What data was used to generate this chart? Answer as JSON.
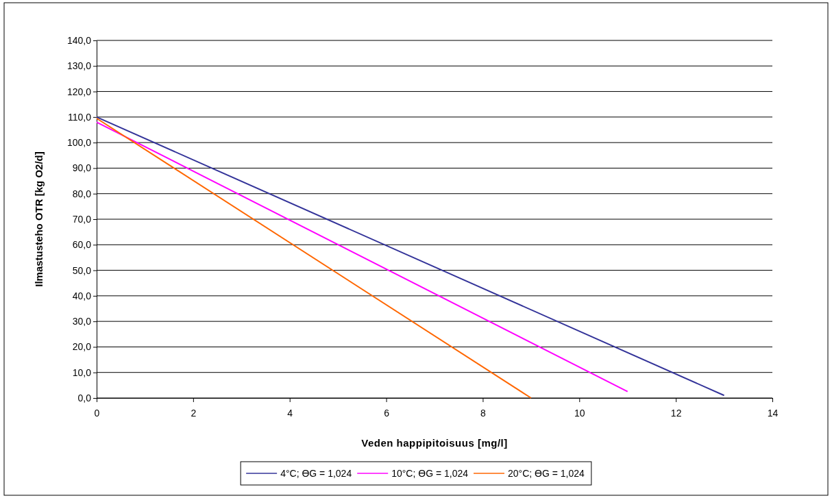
{
  "chart_data": {
    "type": "line",
    "xlabel": "Veden happipitoisuus [mg/l]",
    "ylabel": "Ilmastusteho OTR  [kg O2/d]",
    "xlim": [
      0,
      14
    ],
    "xticks": [
      0,
      2,
      4,
      6,
      8,
      10,
      12,
      14
    ],
    "ylim": [
      0,
      140
    ],
    "yticks": [
      {
        "value": 0,
        "label": "0,0"
      },
      {
        "value": 10,
        "label": "10,0"
      },
      {
        "value": 20,
        "label": "20,0"
      },
      {
        "value": 30,
        "label": "30,0"
      },
      {
        "value": 40,
        "label": "40,0"
      },
      {
        "value": 50,
        "label": "50,0"
      },
      {
        "value": 60,
        "label": "60,0"
      },
      {
        "value": 70,
        "label": "70,0"
      },
      {
        "value": 80,
        "label": "80,0"
      },
      {
        "value": 90,
        "label": "90,0"
      },
      {
        "value": 100,
        "label": "100,0"
      },
      {
        "value": 110,
        "label": "110,0"
      },
      {
        "value": 120,
        "label": "120,0"
      },
      {
        "value": 130,
        "label": "130,0"
      },
      {
        "value": 140,
        "label": "140,0"
      }
    ],
    "grid": "y",
    "legend": "bottom",
    "marker": "none",
    "line_style": "solid",
    "series": [
      {
        "name": "4°C; ϴG = 1,024",
        "color": "#333399",
        "x": [
          0,
          13
        ],
        "values": [
          110,
          1
        ]
      },
      {
        "name": "10°C; ϴG = 1,024",
        "color": "#ff00ff",
        "x": [
          0,
          11
        ],
        "values": [
          108,
          2.5
        ]
      },
      {
        "name": "20°C; ϴG = 1,024",
        "color": "#ff6600",
        "x": [
          0,
          9
        ],
        "values": [
          109.5,
          0
        ]
      }
    ]
  }
}
